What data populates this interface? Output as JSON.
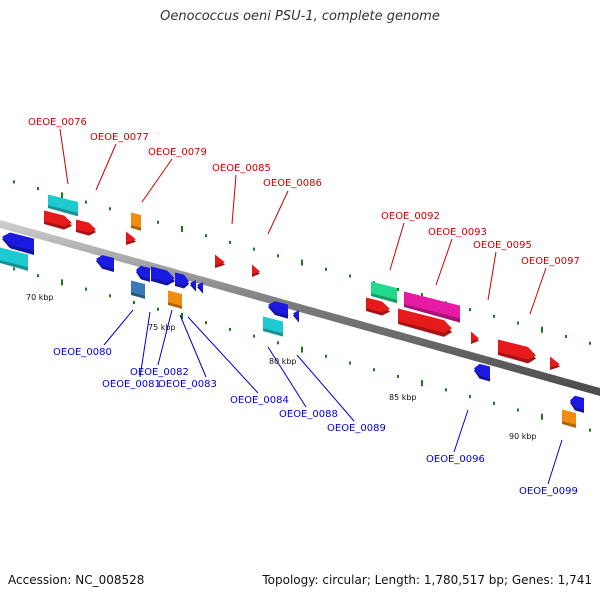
{
  "title": "Oenococcus oeni PSU-1, complete genome",
  "footer": {
    "accession": "Accession: NC_008528",
    "topology": "Topology: circular; Length: 1,780,517 bp; Genes: 1,741"
  },
  "colors": {
    "backbone": "#8a8a8a",
    "forward_label": "#cc0000",
    "reverse_label": "#0000cc",
    "tick": "#1a7a1a",
    "red": "#e51a1a",
    "cyan": "#1ec9d0",
    "green": "#21d98a",
    "magenta": "#e61aa5",
    "blue": "#1a1ae0",
    "steel": "#3a78b8",
    "orange": "#f08c10"
  },
  "scale_ticks": [
    "70 kbp",
    "75 kbp",
    "80 kbp",
    "85 kbp",
    "90 kbp"
  ],
  "labels_top": [
    "OEOE_0076",
    "OEOE_0077",
    "OEOE_0079",
    "OEOE_0085",
    "OEOE_0086",
    "OEOE_0092",
    "OEOE_0093",
    "OEOE_0095",
    "OEOE_0097"
  ],
  "labels_bottom": [
    "OEOE_0080",
    "OEOE_0082",
    "OEOE_0081",
    "OEOE_0083",
    "OEOE_0084",
    "OEOE_0088",
    "OEOE_0089",
    "OEOE_0096",
    "OEOE_0099"
  ]
}
